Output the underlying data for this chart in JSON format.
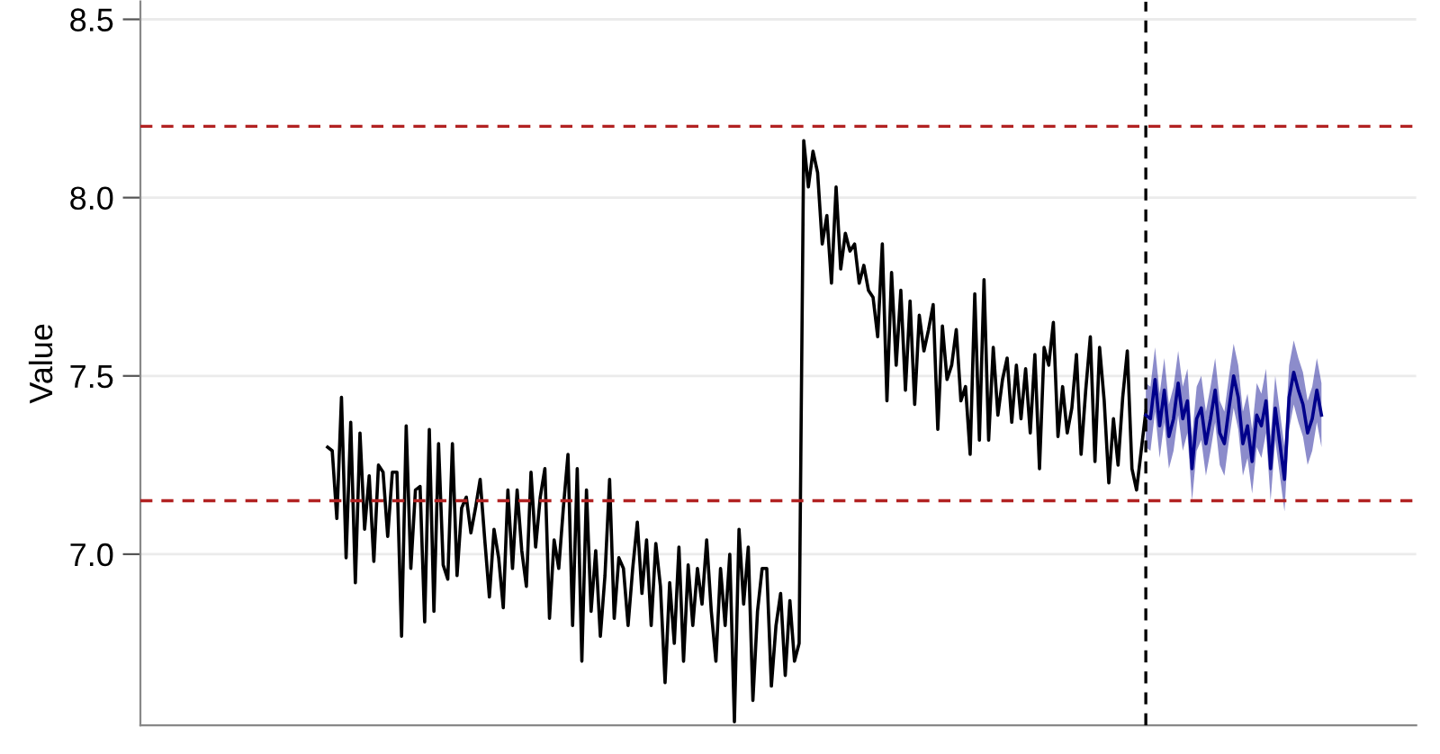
{
  "chart_data": {
    "type": "line",
    "ylabel": "Value",
    "categories": [
      null,
      null,
      null,
      null,
      null,
      null,
      null,
      null,
      null,
      null,
      null,
      null,
      null,
      null,
      null,
      null,
      null,
      null,
      null,
      null,
      null,
      null,
      null,
      null,
      null,
      null,
      null,
      null,
      null,
      null,
      null,
      null,
      null,
      null,
      null,
      null,
      null,
      null,
      null,
      null,
      null,
      null,
      null,
      null,
      null,
      null,
      null,
      null,
      null,
      null,
      null,
      null,
      null,
      null,
      null,
      null,
      null,
      null,
      null,
      null,
      null,
      null,
      null,
      null,
      null,
      null,
      null,
      null,
      null,
      null,
      null,
      null,
      null,
      null,
      null,
      null,
      null,
      null,
      null,
      null,
      null,
      null,
      null,
      null,
      null,
      null,
      null,
      null,
      null,
      null,
      null,
      null,
      null,
      null,
      null,
      null,
      null,
      null,
      null,
      null,
      null,
      null,
      null,
      null,
      null,
      null,
      null,
      null,
      null,
      null,
      null,
      null,
      null,
      null,
      null,
      null,
      null,
      null,
      null,
      null,
      null,
      null,
      null,
      null,
      null,
      null,
      null,
      null,
      null,
      null,
      null,
      null,
      null,
      null,
      null,
      null,
      null,
      null,
      null,
      null,
      null,
      null,
      null,
      null,
      null,
      null,
      null,
      null,
      null,
      null,
      null,
      null,
      null,
      null,
      null,
      null,
      null,
      null,
      null,
      null,
      null,
      null,
      null,
      null,
      null,
      null,
      null,
      null,
      null,
      null,
      null,
      null,
      null,
      null,
      null,
      null,
      null,
      null,
      null,
      null,
      null,
      null,
      null,
      null,
      null,
      null,
      null,
      null,
      null,
      null,
      null,
      null,
      null,
      null,
      null,
      null,
      null,
      null,
      null,
      null,
      null,
      null,
      null,
      null,
      null,
      null,
      null,
      null,
      null,
      null,
      null,
      null,
      null,
      null,
      null,
      null,
      null,
      null,
      null,
      null,
      null,
      null,
      null,
      null,
      null,
      null,
      null,
      null,
      null,
      null,
      null,
      null,
      null,
      null,
      null,
      null,
      null,
      null,
      null,
      null,
      null,
      null,
      null,
      null,
      null,
      null,
      null,
      null,
      null,
      null,
      null,
      null,
      null,
      null,
      null,
      null,
      null,
      null,
      null,
      null,
      null,
      null,
      null,
      null,
      null,
      null,
      null,
      null,
      null,
      null,
      null,
      null,
      null,
      null,
      null,
      null
    ],
    "ylim": [
      6.52,
      8.55
    ],
    "yticks": [
      {
        "value": 7.0,
        "label": "7.0"
      },
      {
        "value": 7.5,
        "label": "7.5"
      },
      {
        "value": 8.0,
        "label": "8.0"
      },
      {
        "value": 8.5,
        "label": "8.5"
      }
    ],
    "grid": "y",
    "tick_labels": "y",
    "ref_lines": [
      {
        "axis": "y",
        "value": 8.2,
        "color": "#b22222",
        "line_style": "dashed"
      },
      {
        "axis": "y",
        "value": 7.15,
        "color": "#b22222",
        "line_style": "dashed"
      }
    ],
    "series": [
      {
        "color": "#000000",
        "values": [
          null,
          null,
          null,
          null,
          null,
          null,
          null,
          null,
          null,
          null,
          null,
          null,
          null,
          null,
          null,
          null,
          null,
          null,
          null,
          null,
          null,
          null,
          null,
          null,
          null,
          null,
          null,
          null,
          null,
          null,
          null,
          null,
          null,
          null,
          null,
          null,
          null,
          null,
          null,
          null,
          7.3,
          7.29,
          7.1,
          7.44,
          6.99,
          7.37,
          6.92,
          7.34,
          7.07,
          7.22,
          6.98,
          7.25,
          7.23,
          7.05,
          7.23,
          7.23,
          6.77,
          7.36,
          6.96,
          7.18,
          7.19,
          6.81,
          7.35,
          6.84,
          7.31,
          6.97,
          6.93,
          7.31,
          6.94,
          7.13,
          7.16,
          7.06,
          7.13,
          7.21,
          7.04,
          6.88,
          7.07,
          6.99,
          6.85,
          7.18,
          6.96,
          7.18,
          7.01,
          6.91,
          7.23,
          7.02,
          7.16,
          7.24,
          6.82,
          7.04,
          6.96,
          7.13,
          7.28,
          6.8,
          7.24,
          6.7,
          7.18,
          6.84,
          7.01,
          6.77,
          6.94,
          7.21,
          6.82,
          6.99,
          6.96,
          6.8,
          6.96,
          7.09,
          6.89,
          7.04,
          6.8,
          7.03,
          6.91,
          6.64,
          6.92,
          6.75,
          7.02,
          6.7,
          6.97,
          6.8,
          6.96,
          6.86,
          7.04,
          6.84,
          6.7,
          6.96,
          6.8,
          7.0,
          6.53,
          7.07,
          6.86,
          7.02,
          6.59,
          6.84,
          6.96,
          6.96,
          6.63,
          6.8,
          6.89,
          6.66,
          6.87,
          6.7,
          6.75,
          8.16,
          8.03,
          8.13,
          8.07,
          7.87,
          7.95,
          7.76,
          8.03,
          7.8,
          7.9,
          7.85,
          7.87,
          7.76,
          7.81,
          7.74,
          7.72,
          7.61,
          7.87,
          7.43,
          7.79,
          7.53,
          7.74,
          7.46,
          7.71,
          7.42,
          7.67,
          7.57,
          7.63,
          7.7,
          7.35,
          7.64,
          7.49,
          7.53,
          7.63,
          7.43,
          7.47,
          7.28,
          7.73,
          7.32,
          7.77,
          7.32,
          7.58,
          7.39,
          7.49,
          7.55,
          7.37,
          7.53,
          7.38,
          7.52,
          7.34,
          7.56,
          7.24,
          7.58,
          7.53,
          7.65,
          7.33,
          7.47,
          7.34,
          7.41,
          7.56,
          7.28,
          7.46,
          7.61,
          7.26,
          7.58,
          7.43,
          7.2,
          7.38,
          7.25,
          7.44,
          7.57,
          7.24,
          7.18,
          7.29,
          7.4,
          null,
          null,
          null,
          null,
          null,
          null,
          null,
          null,
          null,
          null,
          null,
          null,
          null,
          null,
          null,
          null,
          null,
          null,
          null,
          null,
          null,
          null,
          null,
          null,
          null,
          null,
          null,
          null,
          null,
          null,
          null,
          null,
          null,
          null,
          null,
          null,
          null,
          null,
          null,
          null,
          null,
          null,
          null,
          null,
          null,
          null,
          null,
          null,
          null,
          null,
          null,
          null,
          null,
          null,
          null,
          null,
          null,
          null
        ]
      },
      {
        "color": "#00008b",
        "values": [
          null,
          null,
          null,
          null,
          null,
          null,
          null,
          null,
          null,
          null,
          null,
          null,
          null,
          null,
          null,
          null,
          null,
          null,
          null,
          null,
          null,
          null,
          null,
          null,
          null,
          null,
          null,
          null,
          null,
          null,
          null,
          null,
          null,
          null,
          null,
          null,
          null,
          null,
          null,
          null,
          null,
          null,
          null,
          null,
          null,
          null,
          null,
          null,
          null,
          null,
          null,
          null,
          null,
          null,
          null,
          null,
          null,
          null,
          null,
          null,
          null,
          null,
          null,
          null,
          null,
          null,
          null,
          null,
          null,
          null,
          null,
          null,
          null,
          null,
          null,
          null,
          null,
          null,
          null,
          null,
          null,
          null,
          null,
          null,
          null,
          null,
          null,
          null,
          null,
          null,
          null,
          null,
          null,
          null,
          null,
          null,
          null,
          null,
          null,
          null,
          null,
          null,
          null,
          null,
          null,
          null,
          null,
          null,
          null,
          null,
          null,
          null,
          null,
          null,
          null,
          null,
          null,
          null,
          null,
          null,
          null,
          null,
          null,
          null,
          null,
          null,
          null,
          null,
          null,
          null,
          null,
          null,
          null,
          null,
          null,
          null,
          null,
          null,
          null,
          null,
          null,
          null,
          null,
          null,
          null,
          null,
          null,
          null,
          null,
          null,
          null,
          null,
          null,
          null,
          null,
          null,
          null,
          null,
          null,
          null,
          null,
          null,
          null,
          null,
          null,
          null,
          null,
          null,
          null,
          null,
          null,
          null,
          null,
          null,
          null,
          null,
          null,
          null,
          null,
          null,
          null,
          null,
          null,
          null,
          null,
          null,
          null,
          null,
          null,
          null,
          null,
          null,
          null,
          null,
          null,
          null,
          null,
          null,
          null,
          null,
          null,
          null,
          null,
          null,
          null,
          null,
          null,
          null,
          null,
          null,
          null,
          null,
          null,
          null,
          null,
          null,
          null,
          7.39,
          7.38,
          7.49,
          7.36,
          7.46,
          7.33,
          7.38,
          7.48,
          7.38,
          7.43,
          7.24,
          7.38,
          7.41,
          7.31,
          7.38,
          7.46,
          7.34,
          7.31,
          7.41,
          7.5,
          7.44,
          7.31,
          7.36,
          7.26,
          7.39,
          7.36,
          7.43,
          7.24,
          7.41,
          7.31,
          7.21,
          7.44,
          7.51,
          7.46,
          7.42,
          7.34,
          7.38,
          7.46,
          7.39,
          null,
          null,
          null,
          null,
          null,
          null,
          null,
          null,
          null,
          null,
          null,
          null,
          null,
          null,
          null,
          null,
          null,
          null,
          null,
          null
        ],
        "lower": [
          null,
          null,
          null,
          null,
          null,
          null,
          null,
          null,
          null,
          null,
          null,
          null,
          null,
          null,
          null,
          null,
          null,
          null,
          null,
          null,
          null,
          null,
          null,
          null,
          null,
          null,
          null,
          null,
          null,
          null,
          null,
          null,
          null,
          null,
          null,
          null,
          null,
          null,
          null,
          null,
          null,
          null,
          null,
          null,
          null,
          null,
          null,
          null,
          null,
          null,
          null,
          null,
          null,
          null,
          null,
          null,
          null,
          null,
          null,
          null,
          null,
          null,
          null,
          null,
          null,
          null,
          null,
          null,
          null,
          null,
          null,
          null,
          null,
          null,
          null,
          null,
          null,
          null,
          null,
          null,
          null,
          null,
          null,
          null,
          null,
          null,
          null,
          null,
          null,
          null,
          null,
          null,
          null,
          null,
          null,
          null,
          null,
          null,
          null,
          null,
          null,
          null,
          null,
          null,
          null,
          null,
          null,
          null,
          null,
          null,
          null,
          null,
          null,
          null,
          null,
          null,
          null,
          null,
          null,
          null,
          null,
          null,
          null,
          null,
          null,
          null,
          null,
          null,
          null,
          null,
          null,
          null,
          null,
          null,
          null,
          null,
          null,
          null,
          null,
          null,
          null,
          null,
          null,
          null,
          null,
          null,
          null,
          null,
          null,
          null,
          null,
          null,
          null,
          null,
          null,
          null,
          null,
          null,
          null,
          null,
          null,
          null,
          null,
          null,
          null,
          null,
          null,
          null,
          null,
          null,
          null,
          null,
          null,
          null,
          null,
          null,
          null,
          null,
          null,
          null,
          null,
          null,
          null,
          null,
          null,
          null,
          null,
          null,
          null,
          null,
          null,
          null,
          null,
          null,
          null,
          null,
          null,
          null,
          null,
          null,
          null,
          null,
          null,
          null,
          null,
          null,
          null,
          null,
          null,
          null,
          null,
          null,
          null,
          null,
          null,
          null,
          null,
          7.3,
          7.29,
          7.4,
          7.27,
          7.37,
          7.24,
          7.29,
          7.39,
          7.29,
          7.34,
          7.15,
          7.29,
          7.32,
          7.22,
          7.29,
          7.37,
          7.25,
          7.22,
          7.32,
          7.41,
          7.35,
          7.22,
          7.27,
          7.17,
          7.3,
          7.27,
          7.34,
          7.15,
          7.32,
          7.22,
          7.12,
          7.35,
          7.42,
          7.37,
          7.33,
          7.25,
          7.29,
          7.37,
          7.3,
          null,
          null,
          null,
          null,
          null,
          null,
          null,
          null,
          null,
          null,
          null,
          null,
          null,
          null,
          null,
          null,
          null,
          null,
          null,
          null
        ],
        "upper": [
          null,
          null,
          null,
          null,
          null,
          null,
          null,
          null,
          null,
          null,
          null,
          null,
          null,
          null,
          null,
          null,
          null,
          null,
          null,
          null,
          null,
          null,
          null,
          null,
          null,
          null,
          null,
          null,
          null,
          null,
          null,
          null,
          null,
          null,
          null,
          null,
          null,
          null,
          null,
          null,
          null,
          null,
          null,
          null,
          null,
          null,
          null,
          null,
          null,
          null,
          null,
          null,
          null,
          null,
          null,
          null,
          null,
          null,
          null,
          null,
          null,
          null,
          null,
          null,
          null,
          null,
          null,
          null,
          null,
          null,
          null,
          null,
          null,
          null,
          null,
          null,
          null,
          null,
          null,
          null,
          null,
          null,
          null,
          null,
          null,
          null,
          null,
          null,
          null,
          null,
          null,
          null,
          null,
          null,
          null,
          null,
          null,
          null,
          null,
          null,
          null,
          null,
          null,
          null,
          null,
          null,
          null,
          null,
          null,
          null,
          null,
          null,
          null,
          null,
          null,
          null,
          null,
          null,
          null,
          null,
          null,
          null,
          null,
          null,
          null,
          null,
          null,
          null,
          null,
          null,
          null,
          null,
          null,
          null,
          null,
          null,
          null,
          null,
          null,
          null,
          null,
          null,
          null,
          null,
          null,
          null,
          null,
          null,
          null,
          null,
          null,
          null,
          null,
          null,
          null,
          null,
          null,
          null,
          null,
          null,
          null,
          null,
          null,
          null,
          null,
          null,
          null,
          null,
          null,
          null,
          null,
          null,
          null,
          null,
          null,
          null,
          null,
          null,
          null,
          null,
          null,
          null,
          null,
          null,
          null,
          null,
          null,
          null,
          null,
          null,
          null,
          null,
          null,
          null,
          null,
          null,
          null,
          null,
          null,
          null,
          null,
          null,
          null,
          null,
          null,
          null,
          null,
          null,
          null,
          null,
          null,
          null,
          null,
          null,
          null,
          null,
          null,
          7.48,
          7.47,
          7.58,
          7.45,
          7.55,
          7.42,
          7.47,
          7.57,
          7.47,
          7.52,
          7.33,
          7.47,
          7.5,
          7.4,
          7.47,
          7.55,
          7.43,
          7.4,
          7.5,
          7.59,
          7.53,
          7.4,
          7.45,
          7.35,
          7.48,
          7.45,
          7.52,
          7.33,
          7.5,
          7.4,
          7.3,
          7.53,
          7.6,
          7.55,
          7.51,
          7.43,
          7.47,
          7.55,
          7.48,
          null,
          null,
          null,
          null,
          null,
          null,
          null,
          null,
          null,
          null,
          null,
          null,
          null,
          null,
          null,
          null,
          null,
          null,
          null,
          null
        ]
      }
    ]
  }
}
